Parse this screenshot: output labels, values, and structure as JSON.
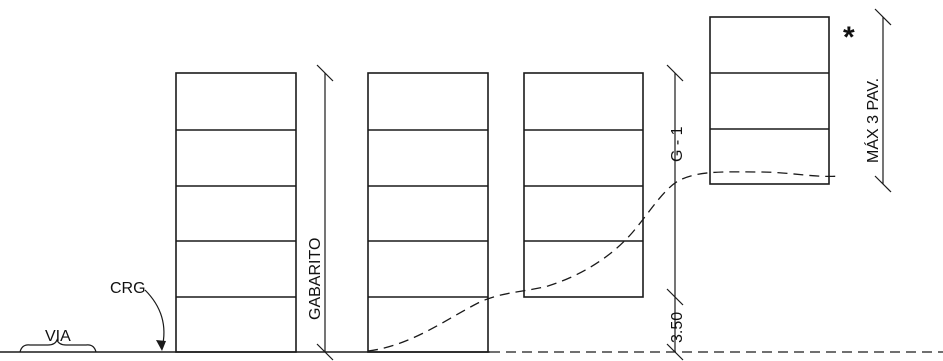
{
  "labels": {
    "via": "VIA",
    "crg": "CRG",
    "gabarito": "GABARITO",
    "g1": "G - 1",
    "h350": "3.50",
    "max3pav": "MÁX 3 PAV.",
    "asterisk": "*"
  },
  "buildings": [
    {
      "id": "building-1",
      "floors": 5
    },
    {
      "id": "building-2",
      "floors": 5
    },
    {
      "id": "building-3",
      "floors": 4
    },
    {
      "id": "building-4",
      "floors": 3
    }
  ]
}
